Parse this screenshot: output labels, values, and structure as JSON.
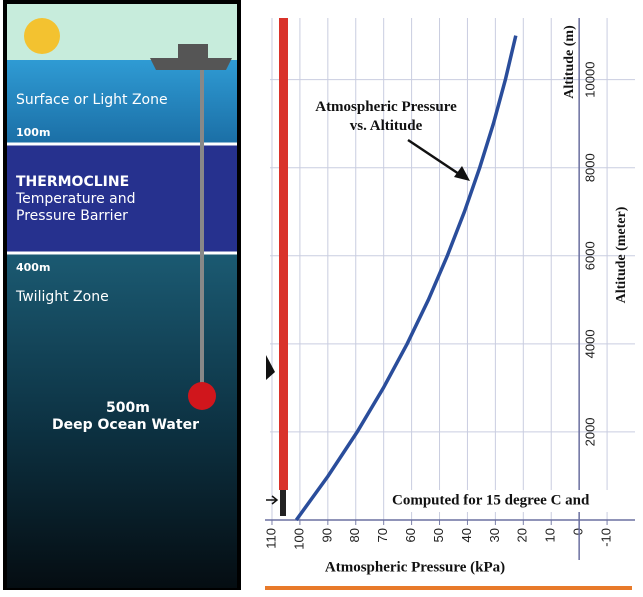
{
  "diagram": {
    "zones": [
      "Surface or Light Zone",
      "100m",
      "THERMOCLINE",
      "Temperature and",
      "Pressure Barrier",
      "400m",
      "Twilight Zone",
      "500m",
      "Deep Ocean Water"
    ]
  },
  "chart_data": {
    "type": "line",
    "annotation": "Atmospheric Pressure\nvs. Altitude",
    "note": "Computed for 15 degree C and",
    "xlabel": "Atmospheric Pressure (kPa)",
    "ylabel": "Altitude (meter)",
    "ylabel2": "Altitude (m)",
    "x": [
      101.3,
      89.9,
      79.5,
      70.1,
      61.6,
      54.0,
      47.2,
      41.1,
      35.6,
      30.7,
      26.4,
      22.7
    ],
    "series": [
      {
        "color": "#2a4d9b",
        "values": [
          0,
          1000,
          2000,
          3000,
          4000,
          5000,
          6000,
          7000,
          8000,
          9000,
          10000,
          11000
        ]
      }
    ],
    "xlim": [
      112.5,
      -20
    ],
    "ylim": [
      0,
      11400
    ],
    "xticks": [
      110,
      100,
      90,
      80,
      70,
      60,
      50,
      40,
      30,
      20,
      10,
      0,
      -10
    ],
    "yticks": [
      2000,
      4000,
      6000,
      8000,
      10000
    ],
    "grid": true
  }
}
